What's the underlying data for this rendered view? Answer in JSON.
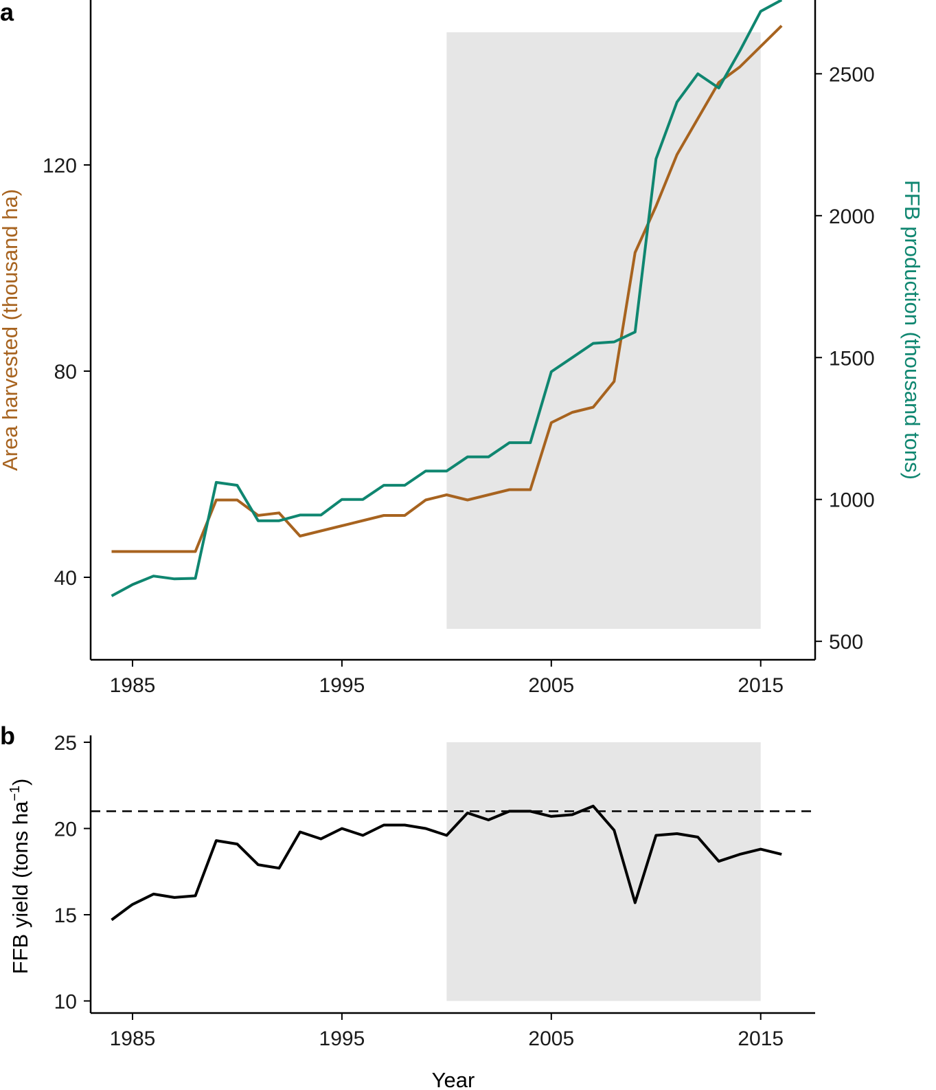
{
  "colors": {
    "area": "#a7631f",
    "production": "#0f8670",
    "yield": "#000000",
    "shade": "#e6e6e6",
    "axis": "#000000"
  },
  "chart_data": [
    {
      "panel": "a",
      "type": "line",
      "title": "",
      "x": [
        1984,
        1985,
        1986,
        1987,
        1988,
        1989,
        1990,
        1991,
        1992,
        1993,
        1994,
        1995,
        1996,
        1997,
        1998,
        1999,
        2000,
        2001,
        2002,
        2003,
        2004,
        2005,
        2006,
        2007,
        2008,
        2009,
        2010,
        2011,
        2012,
        2013,
        2014,
        2015,
        2016
      ],
      "x_ticks": [
        1985,
        1995,
        2005,
        2015
      ],
      "x_tick_labels": [
        "1985",
        "1995",
        "2005",
        "2015"
      ],
      "xlim": [
        1983,
        2017.6
      ],
      "shaded_region": {
        "x": [
          2000,
          2015
        ]
      },
      "xlabel": "",
      "series": [
        {
          "name": "Area harvested",
          "axis": "left",
          "values": [
            45,
            45,
            45,
            45,
            45,
            55,
            55,
            52,
            52.5,
            48,
            49,
            50,
            51,
            52,
            52,
            55,
            56,
            55,
            56,
            57,
            57,
            70,
            72,
            73,
            78,
            103,
            112,
            122,
            129,
            136,
            139,
            143,
            147
          ]
        },
        {
          "name": "FFB production",
          "axis": "right",
          "values": [
            660,
            700,
            730,
            720,
            722,
            1060,
            1050,
            925,
            925,
            945,
            945,
            1000,
            1000,
            1050,
            1050,
            1100,
            1100,
            1150,
            1150,
            1200,
            1200,
            1450,
            1500,
            1550,
            1555,
            1590,
            2200,
            2400,
            2500,
            2450,
            2580,
            2720,
            2760
          ]
        }
      ],
      "ylabel": "Area harvested (thousand ha)",
      "ylim": [
        24,
        152
      ],
      "y_ticks": [
        40,
        80,
        120
      ],
      "y_tick_labels": [
        "40",
        "80",
        "120"
      ],
      "ylabel_right": "FFB production (thousand tons)",
      "ylim_right": [
        435,
        2760
      ],
      "y_ticks_right": [
        500,
        1000,
        1500,
        2000,
        2500
      ],
      "y_tick_labels_right": [
        "500",
        "1000",
        "1500",
        "2000",
        "2500"
      ]
    },
    {
      "panel": "b",
      "type": "line",
      "title": "",
      "x": [
        1984,
        1985,
        1986,
        1987,
        1988,
        1989,
        1990,
        1991,
        1992,
        1993,
        1994,
        1995,
        1996,
        1997,
        1998,
        1999,
        2000,
        2001,
        2002,
        2003,
        2004,
        2005,
        2006,
        2007,
        2008,
        2009,
        2010,
        2011,
        2012,
        2013,
        2014,
        2015,
        2016
      ],
      "x_ticks": [
        1985,
        1995,
        2005,
        2015
      ],
      "x_tick_labels": [
        "1985",
        "1995",
        "2005",
        "2015"
      ],
      "xlim": [
        1983,
        2017.6
      ],
      "shaded_region": {
        "x": [
          2000,
          2015
        ],
        "y": [
          10,
          25
        ]
      },
      "reference_line": {
        "y": 21,
        "style": "dashed"
      },
      "series": [
        {
          "name": "FFB yield",
          "values": [
            14.7,
            15.6,
            16.2,
            16.0,
            16.1,
            19.3,
            19.1,
            17.9,
            17.7,
            19.8,
            19.4,
            20.0,
            19.6,
            20.2,
            20.2,
            20.0,
            19.6,
            20.9,
            20.5,
            21.0,
            21.0,
            20.7,
            20.8,
            21.3,
            19.9,
            15.7,
            19.6,
            19.7,
            19.5,
            18.1,
            18.5,
            18.8,
            18.5
          ]
        }
      ],
      "xlabel": "Year",
      "ylabel_main": "FFB yield (tons ha",
      "ylabel_sup": "−1",
      "ylabel_close": ")",
      "ylim": [
        9.3,
        25.4
      ],
      "y_ticks": [
        10,
        15,
        20,
        25
      ],
      "y_tick_labels": [
        "10",
        "15",
        "20",
        "25"
      ]
    }
  ]
}
